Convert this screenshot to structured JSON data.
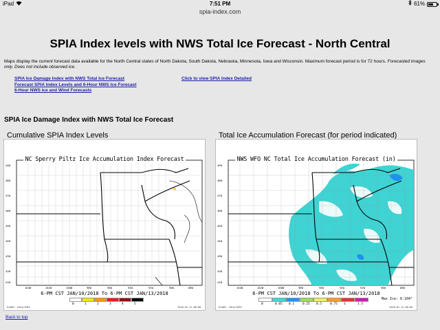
{
  "status_bar": {
    "carrier": "iPad",
    "time": "7:51 PM",
    "battery": "61%",
    "battery_level": 0.61
  },
  "browser": {
    "url": "spia-index.com"
  },
  "page": {
    "title": "SPIA Index levels with NWS Total Ice Forecast - North Central",
    "description": "Maps display the current forecast data available for the North Central states of North Dakota, South Dakota, Nebraska, Minnesota, Iowa and Wisconsin. Maximum forecast period is for 72 hours.",
    "description_note": "Forecasted images only. Does not include observed ice.",
    "links": [
      "SPIA Ice Damage Index with NWS Total Ice Forecast",
      "Forecast SPIA Index Levels and 6-Hour NWS Ice Forecast",
      "6-Hour NWS Ice and Wind Forecasts"
    ],
    "detail_link": "Click to view SPIA Index Detailed",
    "section_heading": "SPIA Ice Damage Index with NWS Total Ice Forecast",
    "back_to_top": "Back to top"
  },
  "maps": {
    "left": {
      "heading": "Cumulative SPIA Index Levels",
      "title": "NC Sperry Piltz Ice Accumulation Index Forecast",
      "time_range": "6-PM CST JAN/10/2018 To 6-PM CST JAN/13/2018",
      "legend_labels": [
        "0",
        "1",
        "2",
        "3",
        "4",
        "5"
      ],
      "legend_colors": [
        "#ffffff",
        "#f5e60a",
        "#f59a0a",
        "#e61e1e",
        "#8c1414",
        "#000000"
      ],
      "footer_left": "GrADS: COLA/IGES",
      "footer_right": "2018-01-11-00:08",
      "lat_labels": [
        "49N",
        "48N",
        "47N",
        "46N",
        "45N",
        "44N",
        "43N",
        "42N",
        "41N"
      ],
      "lon_labels": [
        "104W",
        "102W",
        "100W",
        "98W",
        "96W",
        "94W",
        "92W",
        "90W",
        "88W"
      ]
    },
    "right": {
      "heading": "Total Ice Accumulation Forecast (for period indicated)",
      "title": "NWS WFO NC Total Ice Accumulation Forecast (in)",
      "time_range": "6-PM CST JAN/10/2018 To 6-PM CST JAN/13/2018",
      "legend_labels": [
        "0",
        "0.05",
        "0.1",
        "0.25",
        "0.5",
        "0.75",
        "1",
        "1.5"
      ],
      "legend_colors": [
        "#ffffff",
        "#40d6d6",
        "#1e96f0",
        "#9cdc64",
        "#f0f064",
        "#f0a028",
        "#e63232",
        "#c81eaa"
      ],
      "max_ice": "Max Ice: 0.104\"",
      "footer_left": "GrADS: COLA/IGES",
      "footer_right": "2018-01-11-00:09",
      "lat_labels": [
        "49N",
        "48N",
        "47N",
        "46N",
        "45N",
        "44N",
        "43N",
        "42N",
        "41N"
      ],
      "lon_labels": [
        "104W",
        "102W",
        "100W",
        "98W",
        "96W",
        "94W",
        "92W",
        "90W",
        "88W"
      ]
    }
  }
}
